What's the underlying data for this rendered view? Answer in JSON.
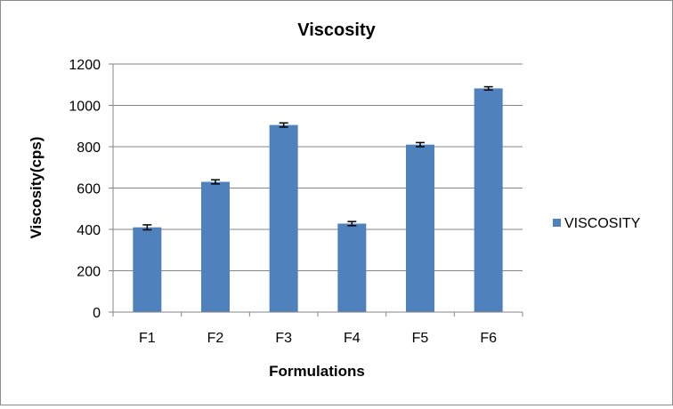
{
  "chart_data": {
    "type": "bar",
    "title": "Viscosity",
    "xlabel": "Formulations",
    "ylabel": "Viscosity(cps)",
    "categories": [
      "F1",
      "F2",
      "F3",
      "F4",
      "F5",
      "F6"
    ],
    "series": [
      {
        "name": "VISCOSITY",
        "values": [
          410,
          630,
          905,
          428,
          810,
          1082
        ],
        "error": [
          12,
          10,
          10,
          10,
          10,
          8
        ]
      }
    ],
    "ylim": [
      0,
      1200
    ],
    "yticks": [
      "0",
      "200",
      "400",
      "600",
      "800",
      "1000",
      "1200"
    ],
    "grid": true,
    "legend_position": "right",
    "colors": {
      "bar": "#4f81bd",
      "grid": "#868686",
      "axis": "#868686",
      "frame": "#8c8c8c"
    }
  }
}
